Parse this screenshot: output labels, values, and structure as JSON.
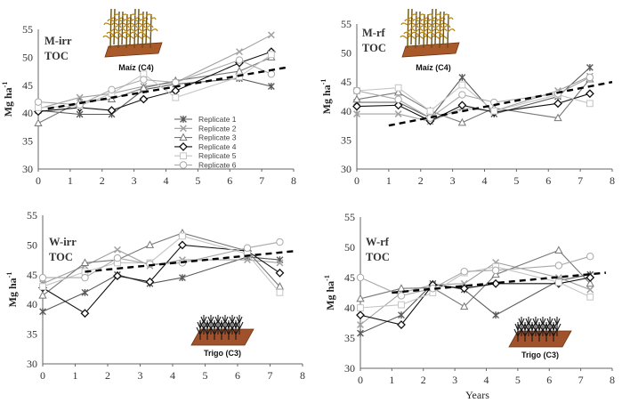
{
  "legend": [
    {
      "name": "Replicate 1",
      "color": "#5a5a5a",
      "marker": "star"
    },
    {
      "name": "Replicate 2",
      "color": "#a0a0a0",
      "marker": "x"
    },
    {
      "name": "Replicate 3",
      "color": "#777777",
      "marker": "triangle"
    },
    {
      "name": "Replicate 4",
      "color": "#111111",
      "marker": "diamond"
    },
    {
      "name": "Replicate 5",
      "color": "#c4c4c4",
      "marker": "square"
    },
    {
      "name": "Replicate 6",
      "color": "#a8a8a8",
      "marker": "circle"
    }
  ],
  "chart_data": [
    {
      "type": "line",
      "title": "M-irr",
      "subtitle": "TOC",
      "ylabel": "Mg ha",
      "ylabel_sup": "-1",
      "xlabel": "",
      "crop": "Maíz (C4)",
      "xlim": [
        0,
        8
      ],
      "ylim": [
        30,
        55
      ],
      "xticks": [
        0,
        1,
        2,
        3,
        4,
        5,
        6,
        7,
        8
      ],
      "yticks": [
        30,
        35,
        40,
        45,
        50,
        55
      ],
      "x": [
        0,
        1.3,
        2.3,
        3.3,
        4.3,
        6.3,
        7.3
      ],
      "series": [
        {
          "name": "Replicate 1",
          "values": [
            40.5,
            39.8,
            39.8,
            44.2,
            45.2,
            46.2,
            44.8
          ]
        },
        {
          "name": "Replicate 2",
          "values": [
            40.8,
            42.8,
            43.5,
            44.8,
            45.5,
            51.0,
            54.0
          ]
        },
        {
          "name": "Replicate 3",
          "values": [
            38.2,
            42.0,
            42.5,
            44.5,
            45.8,
            47.5,
            50.0
          ]
        },
        {
          "name": "Replicate 4",
          "values": [
            40.3,
            41.0,
            40.5,
            42.5,
            44.0,
            49.0,
            51.0
          ]
        },
        {
          "name": "Replicate 5",
          "values": [
            41.0,
            41.3,
            43.5,
            47.0,
            42.8,
            46.5,
            50.5
          ]
        },
        {
          "name": "Replicate 6",
          "values": [
            42.0,
            41.5,
            44.2,
            46.0,
            45.5,
            49.5,
            47.0
          ]
        }
      ],
      "trend": {
        "x": [
          0.3,
          7.8
        ],
        "y": [
          40.8,
          48.2
        ]
      }
    },
    {
      "type": "line",
      "title": "M-rf",
      "subtitle": "TOC",
      "ylabel": "Mg ha",
      "ylabel_sup": "-1",
      "xlabel": "",
      "crop": "Maíz (C4)",
      "xlim": [
        0,
        8
      ],
      "ylim": [
        30,
        55
      ],
      "xticks": [
        0,
        1,
        2,
        3,
        4,
        5,
        6,
        7,
        8
      ],
      "yticks": [
        30,
        35,
        40,
        45,
        50,
        55
      ],
      "x": [
        0,
        1.3,
        2.3,
        3.3,
        4.3,
        6.3,
        7.3
      ],
      "series": [
        {
          "name": "Replicate 1",
          "values": [
            41.5,
            41.5,
            38.8,
            45.8,
            39.5,
            42.5,
            47.5
          ]
        },
        {
          "name": "Replicate 2",
          "values": [
            39.5,
            39.5,
            38.2,
            40.5,
            40.0,
            43.5,
            46.0
          ]
        },
        {
          "name": "Replicate 3",
          "values": [
            42.0,
            43.2,
            40.0,
            38.0,
            40.5,
            38.8,
            45.5
          ]
        },
        {
          "name": "Replicate 4",
          "values": [
            40.8,
            41.0,
            38.3,
            41.0,
            39.8,
            41.3,
            43.0
          ]
        },
        {
          "name": "Replicate 5",
          "values": [
            43.5,
            44.0,
            40.0,
            44.5,
            40.0,
            42.8,
            41.3
          ]
        },
        {
          "name": "Replicate 6",
          "values": [
            43.5,
            42.0,
            38.8,
            42.8,
            41.5,
            43.0,
            45.8
          ]
        }
      ],
      "trend": {
        "x": [
          1,
          8
        ],
        "y": [
          37.5,
          45.0
        ]
      }
    },
    {
      "type": "line",
      "title": "W-irr",
      "subtitle": "TOC",
      "ylabel": "Mg ha",
      "ylabel_sup": "-1",
      "xlabel": "",
      "crop": "Trigo (C3)",
      "xlim": [
        0,
        8
      ],
      "ylim": [
        30,
        55
      ],
      "xticks": [
        0,
        1,
        2,
        3,
        4,
        5,
        6,
        7,
        8
      ],
      "yticks": [
        30,
        35,
        40,
        45,
        50,
        55
      ],
      "x": [
        0,
        1.3,
        2.3,
        3.3,
        4.3,
        6.3,
        7.3
      ],
      "series": [
        {
          "name": "Replicate 1",
          "values": [
            38.8,
            42.0,
            45.0,
            43.5,
            44.5,
            48.0,
            47.5
          ]
        },
        {
          "name": "Replicate 2",
          "values": [
            43.5,
            46.5,
            49.2,
            46.5,
            47.5,
            47.5,
            47.0
          ]
        },
        {
          "name": "Replicate 3",
          "values": [
            41.5,
            47.0,
            47.5,
            50.0,
            52.0,
            49.0,
            43.0
          ]
        },
        {
          "name": "Replicate 4",
          "values": [
            42.8,
            38.5,
            44.8,
            43.8,
            50.0,
            49.0,
            45.3
          ]
        },
        {
          "name": "Replicate 5",
          "values": [
            43.0,
            45.5,
            47.0,
            47.0,
            51.5,
            48.5,
            42.0
          ]
        },
        {
          "name": "Replicate 6",
          "values": [
            44.5,
            44.5,
            47.8,
            46.8,
            47.0,
            49.5,
            50.5
          ]
        }
      ],
      "trend": {
        "x": [
          1.3,
          7.8
        ],
        "y": [
          45.5,
          49.0
        ]
      }
    },
    {
      "type": "line",
      "title": "W-rf",
      "subtitle": "TOC",
      "ylabel": "Mg ha",
      "ylabel_sup": "-1",
      "xlabel": "Years",
      "crop": "Trigo (C3)",
      "xlim": [
        0,
        8
      ],
      "ylim": [
        30,
        55
      ],
      "xticks": [
        0,
        1,
        2,
        3,
        4,
        5,
        6,
        7,
        8
      ],
      "yticks": [
        30,
        35,
        40,
        45,
        50,
        55
      ],
      "x": [
        0,
        1.3,
        2.3,
        3.3,
        4.3,
        6.3,
        7.3
      ],
      "series": [
        {
          "name": "Replicate 1",
          "values": [
            35.8,
            38.8,
            44.0,
            43.0,
            38.8,
            44.5,
            45.5
          ]
        },
        {
          "name": "Replicate 2",
          "values": [
            37.2,
            42.5,
            43.8,
            44.0,
            47.5,
            45.0,
            43.0
          ]
        },
        {
          "name": "Replicate 3",
          "values": [
            41.5,
            43.2,
            43.3,
            40.2,
            45.5,
            49.5,
            44.0
          ]
        },
        {
          "name": "Replicate 4",
          "values": [
            38.8,
            37.2,
            43.8,
            43.2,
            44.0,
            44.0,
            45.0
          ]
        },
        {
          "name": "Replicate 5",
          "values": [
            40.0,
            40.5,
            42.5,
            45.8,
            46.8,
            44.2,
            41.8
          ]
        },
        {
          "name": "Replicate 6",
          "values": [
            45.0,
            42.0,
            43.2,
            46.0,
            46.2,
            47.0,
            48.5
          ]
        }
      ],
      "trend": {
        "x": [
          1,
          7.8
        ],
        "y": [
          42.5,
          45.8
        ]
      }
    }
  ]
}
